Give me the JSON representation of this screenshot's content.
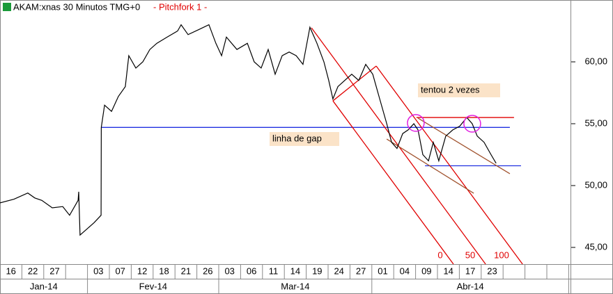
{
  "chart_data": {
    "type": "line",
    "title": "AKAM:xnas 30 Minutos TMG+0",
    "subtitle": "-  Pitchfork 1  -",
    "xlim": [
      0,
      26
    ],
    "ylim": [
      43.65,
      65
    ],
    "yticks": [
      {
        "value": 45,
        "label": "45,00"
      },
      {
        "value": 50,
        "label": "50,00"
      },
      {
        "value": 55,
        "label": "55,00"
      },
      {
        "value": 60,
        "label": "60,00"
      }
    ],
    "categories": [
      "16",
      "22",
      "27",
      null,
      "03",
      "07",
      "12",
      "18",
      "21",
      "26",
      "03",
      "06",
      "11",
      "14",
      "19",
      "24",
      "27",
      "01",
      "04",
      "09",
      "14",
      "17",
      "23",
      null,
      null,
      null
    ],
    "months": [
      {
        "label": "Jan-14",
        "from": 0,
        "to": 4
      },
      {
        "label": "Fev-14",
        "from": 4,
        "to": 10
      },
      {
        "label": "Mar-14",
        "from": 10,
        "to": 17
      },
      {
        "label": "Abr-14",
        "from": 17,
        "to": 26
      }
    ],
    "x": [
      0,
      0.64,
      1.27,
      1.59,
      1.91,
      2.39,
      2.87,
      3.18,
      3.57,
      3.6,
      3.66,
      3.98,
      4.3,
      4.62,
      4.63,
      4.78,
      5.1,
      5.41,
      5.73,
      5.89,
      6.21,
      6.53,
      6.85,
      7.17,
      7.64,
      8.12,
      8.28,
      8.6,
      9.08,
      9.55,
      9.87,
      10.13,
      10.35,
      10.83,
      11.31,
      11.62,
      11.94,
      12.26,
      12.58,
      12.9,
      13.22,
      13.54,
      13.85,
      14.17,
      14.49,
      14.81,
      15.03,
      15.22,
      15.45,
      15.76,
      16.08,
      16.4,
      16.72,
      17.04,
      17.36,
      17.68,
      17.9,
      18.15,
      18.41,
      18.66,
      18.92,
      19.11,
      19.33,
      19.59,
      19.81,
      20.06,
      20.38,
      20.7,
      21.02,
      21.34,
      21.59,
      21.82,
      22.13,
      22.45,
      22.68
    ],
    "series": [
      {
        "name": "AKAM",
        "color": "#000000",
        "values": [
          48.6,
          48.9,
          49.4,
          49.0,
          48.8,
          48.2,
          48.3,
          47.6,
          48.8,
          49.5,
          46.0,
          46.5,
          47.0,
          47.6,
          54.7,
          56.5,
          56.0,
          57.2,
          58.0,
          60.5,
          59.5,
          60.0,
          61.0,
          61.5,
          62.0,
          62.5,
          63.0,
          62.2,
          62.6,
          63.0,
          61.5,
          60.5,
          62.0,
          61.0,
          61.5,
          60.0,
          59.5,
          61.0,
          59.0,
          60.5,
          60.8,
          60.5,
          59.8,
          62.8,
          61.5,
          60.0,
          58.5,
          57.0,
          58.0,
          58.5,
          59.0,
          58.5,
          59.8,
          59.0,
          57.0,
          55.0,
          53.5,
          53.0,
          54.2,
          54.5,
          55.0,
          54.5,
          52.5,
          52.0,
          53.5,
          52.0,
          54.0,
          54.5,
          54.8,
          55.5,
          55.0,
          54.0,
          53.5,
          52.5,
          51.8
        ]
      }
    ],
    "drawings": [
      {
        "color": "#2030e0",
        "x1": 4.62,
        "y1": 54.7,
        "x2": 23.31,
        "y2": 54.7
      },
      {
        "color": "#2030e0",
        "x1": 19.43,
        "y1": 51.6,
        "x2": 23.82,
        "y2": 51.6
      },
      {
        "color": "#e00000",
        "x1": 19.04,
        "y1": 55.5,
        "x2": 23.5,
        "y2": 55.5
      },
      {
        "color": "#e00000",
        "x1": 15.22,
        "y1": 56.85,
        "x2": 17.2,
        "y2": 59.66
      },
      {
        "color": "#e00000",
        "x1": 15.22,
        "y1": 56.85,
        "x2": 20.73,
        "y2": 43.65
      },
      {
        "color": "#e00000",
        "x1": 14.24,
        "y1": 62.75,
        "x2": 22.2,
        "y2": 43.65
      },
      {
        "color": "#e00000",
        "x1": 17.2,
        "y1": 59.66,
        "x2": 23.89,
        "y2": 43.65
      },
      {
        "color": "#a0522d",
        "x1": 17.68,
        "y1": 53.76,
        "x2": 21.66,
        "y2": 49.38
      },
      {
        "color": "#a0522d",
        "x1": 19.11,
        "y1": 55.45,
        "x2": 23.31,
        "y2": 50.96
      }
    ],
    "circles": [
      {
        "x": 19.01,
        "y": 55.06
      },
      {
        "x": 21.59,
        "y": 55.0
      }
    ],
    "annotations": [
      "tentou 2 vezes",
      "linha de gap"
    ],
    "pitchfork_levels": [
      "0",
      "50",
      "100"
    ]
  }
}
